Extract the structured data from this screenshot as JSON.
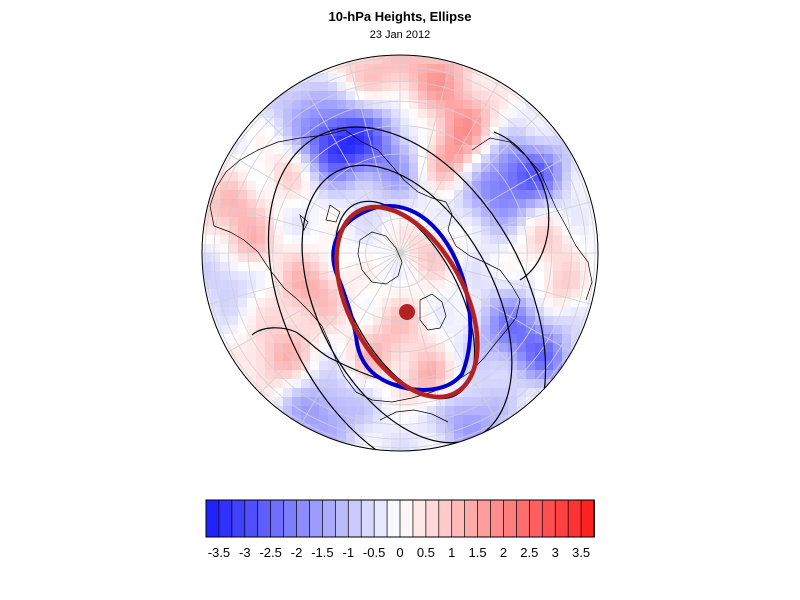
{
  "title": "10-hPa Heights, Ellipse",
  "date": "23 Jan 2012",
  "colorbar": {
    "min": -3.75,
    "max": 3.75,
    "step": 0.25,
    "colors": {
      "negative_end": "#1a1aff",
      "neutral": "#ffffff",
      "positive_end": "#ff1a1a"
    },
    "tick_labels": [
      "-3.5",
      "-3",
      "-2.5",
      "-2",
      "-1.5",
      "-1",
      "-0.5",
      "0",
      "0.5",
      "1",
      "1.5",
      "2",
      "2.5",
      "3",
      "3.5"
    ]
  },
  "map": {
    "projection": "orthographic north polar",
    "contour_color": "#000000",
    "ellipse_colors": {
      "fitted": "#b22222",
      "observed": "#0000cc",
      "center_marker": "#b22222"
    }
  }
}
